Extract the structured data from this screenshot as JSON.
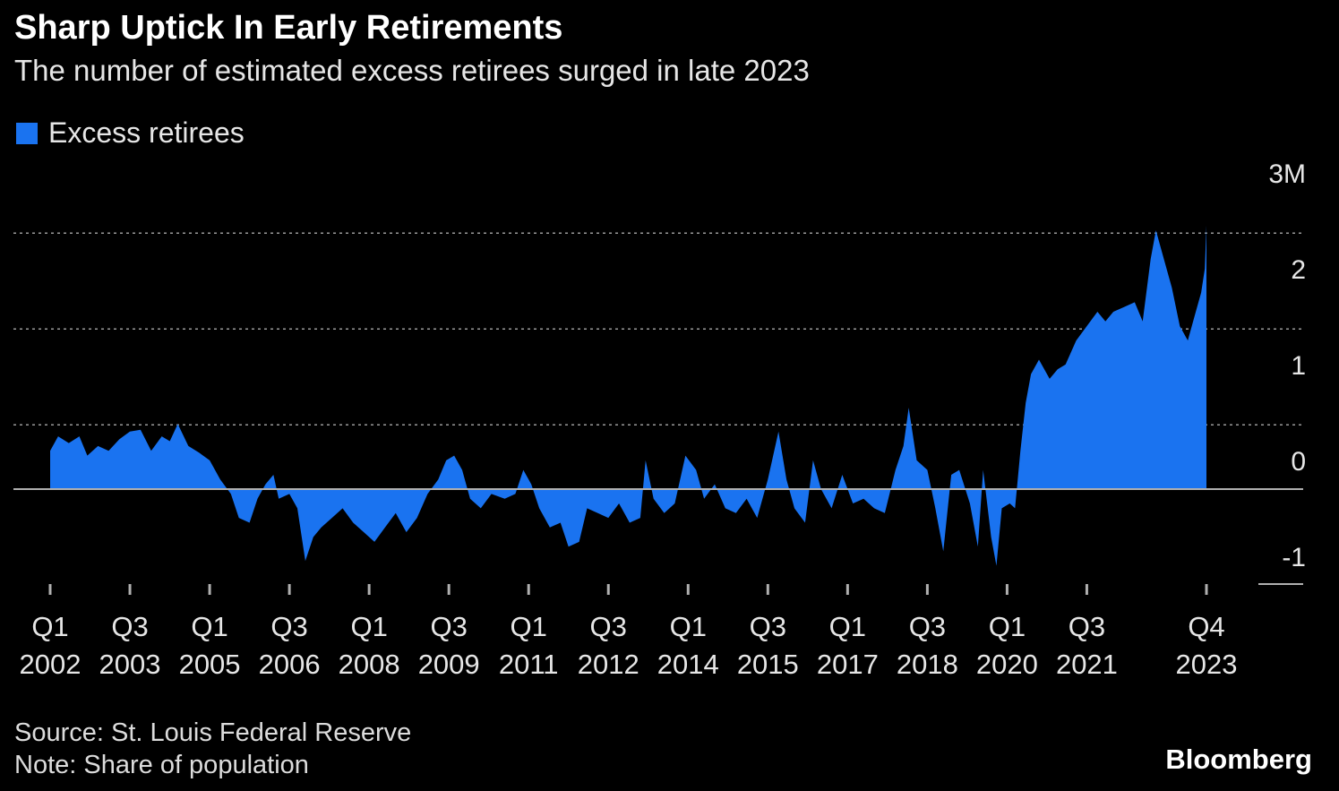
{
  "header": {
    "title": "Sharp Uptick In Early Retirements",
    "subtitle": "The number of estimated excess retirees surged in late 2023"
  },
  "legend": {
    "label": "Excess retirees"
  },
  "colors": {
    "series": "#1a73f0",
    "grid": "#9a9a9a",
    "zero": "#b0b0b0",
    "text": "#e6e6e6"
  },
  "footer": {
    "source": "Source: St. Louis Federal Reserve",
    "note": "Note: Share of population",
    "brand": "Bloomberg"
  },
  "chart_data": {
    "type": "area",
    "title": "Sharp Uptick In Early Retirements",
    "series_name": "Excess retirees",
    "unit": "millions",
    "xlim": [
      2002.0,
      2023.75
    ],
    "ylim": [
      -1,
      3
    ],
    "y_ticks": [
      {
        "value": 3,
        "label": "3M"
      },
      {
        "value": 2,
        "label": "2"
      },
      {
        "value": 1,
        "label": "1"
      },
      {
        "value": 0,
        "label": "0"
      },
      {
        "value": -1,
        "label": "-1"
      }
    ],
    "x_ticks": [
      {
        "t": 2002.0,
        "q": "Q1",
        "y": "2002"
      },
      {
        "t": 2003.5,
        "q": "Q3",
        "y": "2003"
      },
      {
        "t": 2005.0,
        "q": "Q1",
        "y": "2005"
      },
      {
        "t": 2006.5,
        "q": "Q3",
        "y": "2006"
      },
      {
        "t": 2008.0,
        "q": "Q1",
        "y": "2008"
      },
      {
        "t": 2009.5,
        "q": "Q3",
        "y": "2009"
      },
      {
        "t": 2011.0,
        "q": "Q1",
        "y": "2011"
      },
      {
        "t": 2012.5,
        "q": "Q3",
        "y": "2012"
      },
      {
        "t": 2014.0,
        "q": "Q1",
        "y": "2014"
      },
      {
        "t": 2015.5,
        "q": "Q3",
        "y": "2015"
      },
      {
        "t": 2017.0,
        "q": "Q1",
        "y": "2017"
      },
      {
        "t": 2018.5,
        "q": "Q3",
        "y": "2018"
      },
      {
        "t": 2020.0,
        "q": "Q1",
        "y": "2020"
      },
      {
        "t": 2021.5,
        "q": "Q3",
        "y": "2021"
      },
      {
        "t": 2023.75,
        "q": "Q4",
        "y": "2023"
      }
    ],
    "points": [
      [
        2002.0,
        0.4
      ],
      [
        2002.15,
        0.55
      ],
      [
        2002.35,
        0.48
      ],
      [
        2002.55,
        0.55
      ],
      [
        2002.7,
        0.35
      ],
      [
        2002.9,
        0.45
      ],
      [
        2003.1,
        0.4
      ],
      [
        2003.3,
        0.52
      ],
      [
        2003.5,
        0.6
      ],
      [
        2003.7,
        0.62
      ],
      [
        2003.9,
        0.4
      ],
      [
        2004.1,
        0.55
      ],
      [
        2004.25,
        0.5
      ],
      [
        2004.4,
        0.68
      ],
      [
        2004.6,
        0.45
      ],
      [
        2004.8,
        0.38
      ],
      [
        2005.0,
        0.3
      ],
      [
        2005.2,
        0.1
      ],
      [
        2005.4,
        -0.05
      ],
      [
        2005.55,
        -0.3
      ],
      [
        2005.75,
        -0.35
      ],
      [
        2005.9,
        -0.1
      ],
      [
        2006.05,
        0.05
      ],
      [
        2006.2,
        0.15
      ],
      [
        2006.3,
        -0.1
      ],
      [
        2006.5,
        -0.05
      ],
      [
        2006.65,
        -0.2
      ],
      [
        2006.8,
        -0.75
      ],
      [
        2006.95,
        -0.5
      ],
      [
        2007.1,
        -0.4
      ],
      [
        2007.3,
        -0.3
      ],
      [
        2007.5,
        -0.2
      ],
      [
        2007.7,
        -0.35
      ],
      [
        2007.9,
        -0.45
      ],
      [
        2008.1,
        -0.55
      ],
      [
        2008.3,
        -0.4
      ],
      [
        2008.5,
        -0.25
      ],
      [
        2008.7,
        -0.45
      ],
      [
        2008.9,
        -0.3
      ],
      [
        2009.1,
        -0.05
      ],
      [
        2009.3,
        0.1
      ],
      [
        2009.45,
        0.3
      ],
      [
        2009.6,
        0.35
      ],
      [
        2009.75,
        0.2
      ],
      [
        2009.9,
        -0.1
      ],
      [
        2010.1,
        -0.2
      ],
      [
        2010.3,
        -0.05
      ],
      [
        2010.55,
        -0.1
      ],
      [
        2010.75,
        -0.05
      ],
      [
        2010.9,
        0.2
      ],
      [
        2011.05,
        0.05
      ],
      [
        2011.2,
        -0.2
      ],
      [
        2011.4,
        -0.4
      ],
      [
        2011.6,
        -0.35
      ],
      [
        2011.75,
        -0.6
      ],
      [
        2011.95,
        -0.55
      ],
      [
        2012.1,
        -0.2
      ],
      [
        2012.3,
        -0.25
      ],
      [
        2012.5,
        -0.3
      ],
      [
        2012.7,
        -0.15
      ],
      [
        2012.9,
        -0.35
      ],
      [
        2013.1,
        -0.3
      ],
      [
        2013.2,
        0.3
      ],
      [
        2013.35,
        -0.1
      ],
      [
        2013.55,
        -0.25
      ],
      [
        2013.75,
        -0.15
      ],
      [
        2013.95,
        0.35
      ],
      [
        2014.15,
        0.2
      ],
      [
        2014.3,
        -0.1
      ],
      [
        2014.5,
        0.05
      ],
      [
        2014.7,
        -0.2
      ],
      [
        2014.9,
        -0.25
      ],
      [
        2015.1,
        -0.1
      ],
      [
        2015.3,
        -0.3
      ],
      [
        2015.5,
        0.1
      ],
      [
        2015.7,
        0.6
      ],
      [
        2015.85,
        0.1
      ],
      [
        2016.0,
        -0.2
      ],
      [
        2016.2,
        -0.35
      ],
      [
        2016.35,
        0.3
      ],
      [
        2016.5,
        0.0
      ],
      [
        2016.7,
        -0.2
      ],
      [
        2016.9,
        0.15
      ],
      [
        2017.1,
        -0.15
      ],
      [
        2017.3,
        -0.1
      ],
      [
        2017.5,
        -0.2
      ],
      [
        2017.7,
        -0.25
      ],
      [
        2017.9,
        0.2
      ],
      [
        2018.05,
        0.45
      ],
      [
        2018.15,
        0.85
      ],
      [
        2018.3,
        0.3
      ],
      [
        2018.5,
        0.2
      ],
      [
        2018.65,
        -0.2
      ],
      [
        2018.8,
        -0.65
      ],
      [
        2018.95,
        0.15
      ],
      [
        2019.1,
        0.2
      ],
      [
        2019.3,
        -0.15
      ],
      [
        2019.45,
        -0.6
      ],
      [
        2019.55,
        0.2
      ],
      [
        2019.7,
        -0.5
      ],
      [
        2019.8,
        -0.8
      ],
      [
        2019.9,
        -0.2
      ],
      [
        2020.05,
        -0.15
      ],
      [
        2020.15,
        -0.2
      ],
      [
        2020.25,
        0.4
      ],
      [
        2020.35,
        0.9
      ],
      [
        2020.45,
        1.2
      ],
      [
        2020.6,
        1.35
      ],
      [
        2020.8,
        1.15
      ],
      [
        2020.95,
        1.25
      ],
      [
        2021.1,
        1.3
      ],
      [
        2021.3,
        1.55
      ],
      [
        2021.5,
        1.7
      ],
      [
        2021.7,
        1.85
      ],
      [
        2021.85,
        1.75
      ],
      [
        2022.0,
        1.85
      ],
      [
        2022.2,
        1.9
      ],
      [
        2022.4,
        1.95
      ],
      [
        2022.55,
        1.75
      ],
      [
        2022.7,
        2.4
      ],
      [
        2022.8,
        2.7
      ],
      [
        2022.95,
        2.4
      ],
      [
        2023.1,
        2.1
      ],
      [
        2023.25,
        1.7
      ],
      [
        2023.4,
        1.55
      ],
      [
        2023.55,
        1.85
      ],
      [
        2023.65,
        2.05
      ],
      [
        2023.72,
        2.3
      ],
      [
        2023.75,
        2.75
      ]
    ]
  }
}
